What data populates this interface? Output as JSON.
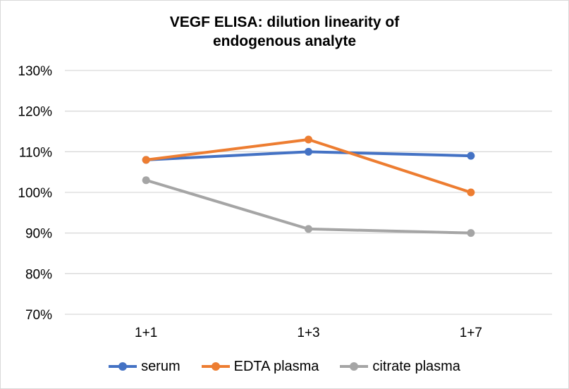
{
  "chart_data": {
    "type": "line",
    "title": [
      "VEGF ELISA: dilution linearity of",
      "endogenous analyte"
    ],
    "categories": [
      "1+1",
      "1+3",
      "1+7"
    ],
    "ylim": [
      70,
      130
    ],
    "yticks": [
      70,
      80,
      90,
      100,
      110,
      120,
      130
    ],
    "ytick_labels": [
      "70%",
      "80%",
      "90%",
      "100%",
      "110%",
      "120%",
      "130%"
    ],
    "grid": true,
    "legend_position": "bottom",
    "series": [
      {
        "name": "serum",
        "color": "#4472c4",
        "values": [
          108,
          110,
          109
        ]
      },
      {
        "name": "EDTA plasma",
        "color": "#ed7d31",
        "values": [
          108,
          113,
          100
        ]
      },
      {
        "name": "citrate plasma",
        "color": "#a5a5a5",
        "values": [
          103,
          91,
          90
        ]
      }
    ]
  }
}
